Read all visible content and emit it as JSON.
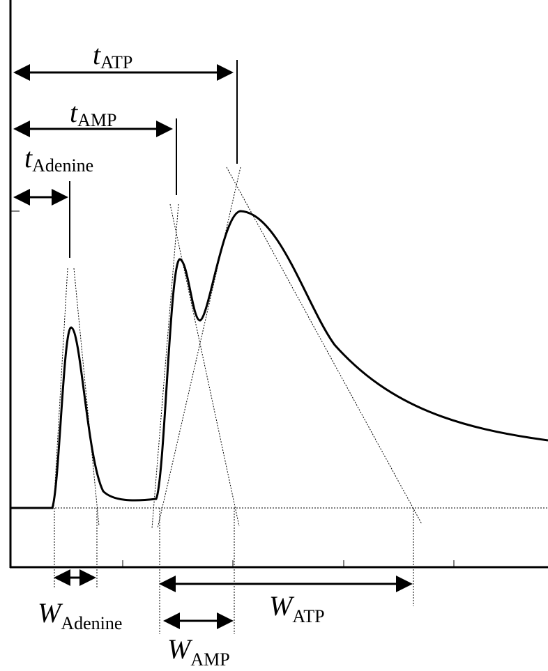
{
  "diagram": {
    "labels": {
      "t_adenine": {
        "symbol": "t",
        "subscript": "Adenine"
      },
      "t_amp": {
        "symbol": "t",
        "subscript": "AMP"
      },
      "t_atp": {
        "symbol": "t",
        "subscript": "ATP"
      },
      "w_adenine": {
        "symbol": "W",
        "subscript": "Adenine"
      },
      "w_amp": {
        "symbol": "W",
        "subscript": "AMP"
      },
      "w_atp": {
        "symbol": "W",
        "subscript": "ATP"
      }
    },
    "colors": {
      "stroke": "#000000",
      "background": "#ffffff"
    }
  }
}
